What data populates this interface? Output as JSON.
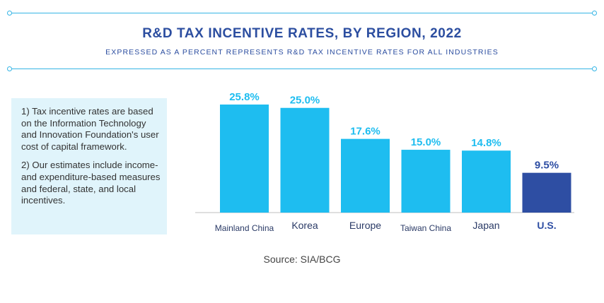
{
  "title": "R&D TAX INCENTIVE RATES, BY REGION, 2022",
  "subtitle": "EXPRESSED AS A PERCENT REPRESENTS R&D TAX INCENTIVE RATES FOR ALL INDUSTRIES",
  "notes": [
    "1) Tax incentive rates are based on the Information Technology and Innovation Foundation's user cost of capital framework.",
    "2) Our estimates include income- and expenditure-based measures and federal, state, and local incentives."
  ],
  "source": "Source: SIA/BCG",
  "colors": {
    "accent": "#35b5e5",
    "bar": "#1ebdf0",
    "highlight": "#2e4ea3",
    "title": "#2c4ea0"
  },
  "chart_data": {
    "type": "bar",
    "title": "R&D TAX INCENTIVE RATES, BY REGION, 2022",
    "categories": [
      "Mainland China",
      "Korea",
      "Europe",
      "Taiwan China",
      "Japan",
      "U.S."
    ],
    "values": [
      25.8,
      25.0,
      17.6,
      15.0,
      14.8,
      9.5
    ],
    "data_labels": [
      "25.8%",
      "25.0%",
      "17.6%",
      "15.0%",
      "14.8%",
      "9.5%"
    ],
    "highlight_category": "U.S.",
    "xlabel": "",
    "ylabel": "",
    "ylim": [
      0,
      28
    ],
    "grid": false
  }
}
